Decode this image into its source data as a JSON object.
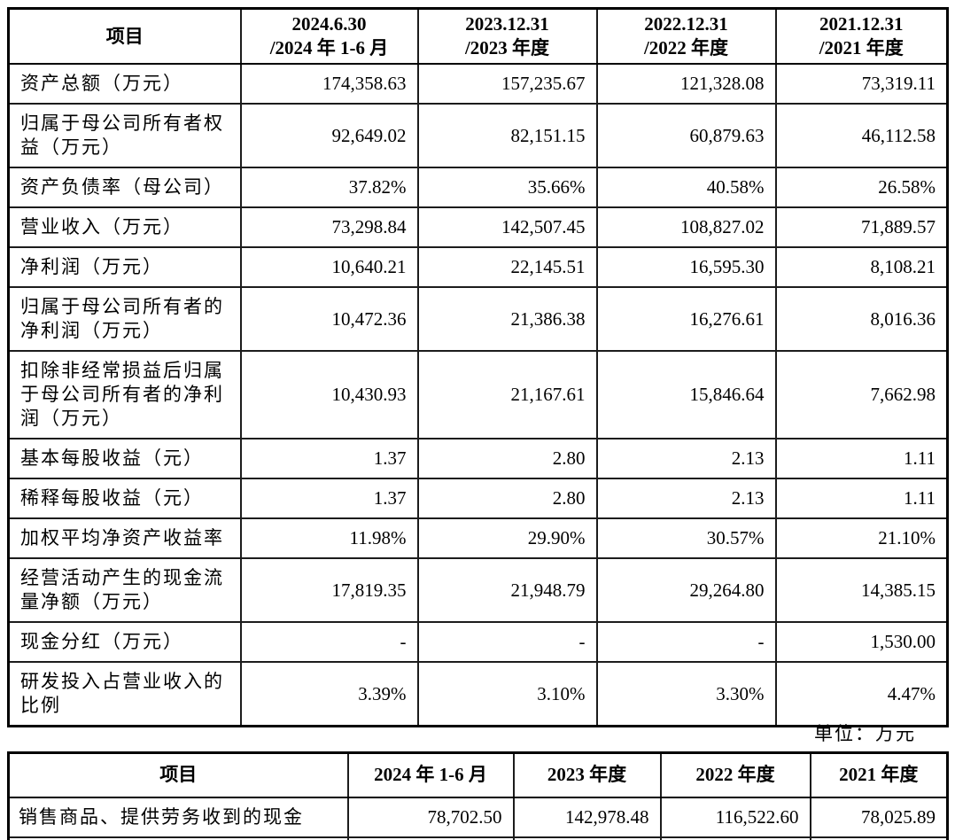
{
  "unit_note": "单位：万元",
  "table1": {
    "item_header": "项目",
    "period_headers": [
      {
        "date": "2024.6.30",
        "period": "/2024 年 1-6 月"
      },
      {
        "date": "2023.12.31",
        "period": "/2023 年度"
      },
      {
        "date": "2022.12.31",
        "period": "/2022 年度"
      },
      {
        "date": "2021.12.31",
        "period": "/2021 年度"
      }
    ],
    "rows": [
      {
        "label": "资产总额（万元）",
        "values": [
          "174,358.63",
          "157,235.67",
          "121,328.08",
          "73,319.11"
        ]
      },
      {
        "label": "归属于母公司所有者权益（万元）",
        "values": [
          "92,649.02",
          "82,151.15",
          "60,879.63",
          "46,112.58"
        ]
      },
      {
        "label": "资产负债率（母公司）",
        "values": [
          "37.82%",
          "35.66%",
          "40.58%",
          "26.58%"
        ]
      },
      {
        "label": "营业收入（万元）",
        "values": [
          "73,298.84",
          "142,507.45",
          "108,827.02",
          "71,889.57"
        ]
      },
      {
        "label": "净利润（万元）",
        "values": [
          "10,640.21",
          "22,145.51",
          "16,595.30",
          "8,108.21"
        ]
      },
      {
        "label": "归属于母公司所有者的净利润（万元）",
        "values": [
          "10,472.36",
          "21,386.38",
          "16,276.61",
          "8,016.36"
        ]
      },
      {
        "label": "扣除非经常损益后归属于母公司所有者的净利润（万元）",
        "values": [
          "10,430.93",
          "21,167.61",
          "15,846.64",
          "7,662.98"
        ]
      },
      {
        "label": "基本每股收益（元）",
        "values": [
          "1.37",
          "2.80",
          "2.13",
          "1.11"
        ]
      },
      {
        "label": "稀释每股收益（元）",
        "values": [
          "1.37",
          "2.80",
          "2.13",
          "1.11"
        ]
      },
      {
        "label": "加权平均净资产收益率",
        "values": [
          "11.98%",
          "29.90%",
          "30.57%",
          "21.10%"
        ]
      },
      {
        "label": "经营活动产生的现金流量净额（万元）",
        "values": [
          "17,819.35",
          "21,948.79",
          "29,264.80",
          "14,385.15"
        ]
      },
      {
        "label": "现金分红（万元）",
        "values": [
          "-",
          "-",
          "-",
          "1,530.00"
        ]
      },
      {
        "label": "研发投入占营业收入的比例",
        "values": [
          "3.39%",
          "3.10%",
          "3.30%",
          "4.47%"
        ]
      }
    ]
  },
  "table2": {
    "item_header": "项目",
    "period_headers": [
      "2024 年 1-6 月",
      "2023 年度",
      "2022 年度",
      "2021 年度"
    ],
    "rows": [
      {
        "label": "销售商品、提供劳务收到的现金",
        "values": [
          "78,702.50",
          "142,978.48",
          "116,522.60",
          "78,025.89"
        ]
      }
    ]
  }
}
